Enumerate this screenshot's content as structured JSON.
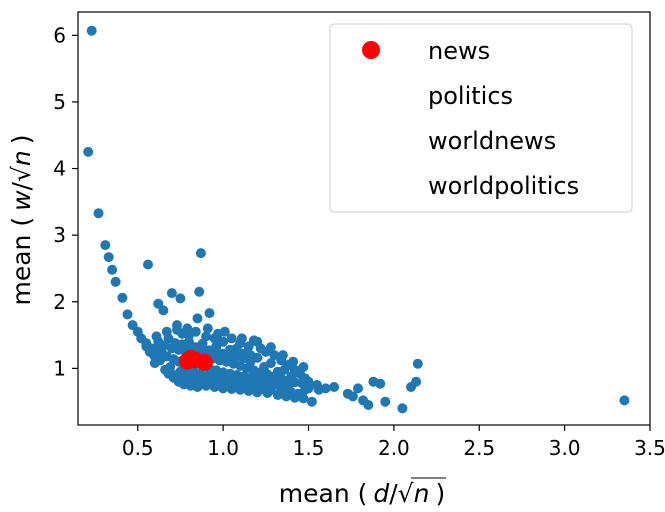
{
  "chart_data": {
    "type": "scatter",
    "xlabel_prefix": "mean (",
    "xlabel_var": "d",
    "xlabel_suffix": ")",
    "ylabel_prefix": "mean (",
    "ylabel_var": "w",
    "ylabel_suffix": ")",
    "xlim": [
      0.15,
      3.5
    ],
    "ylim": [
      0.15,
      6.35
    ],
    "xticks": [
      0.5,
      1.0,
      1.5,
      2.0,
      2.5,
      3.0,
      3.5
    ],
    "xtick_labels": [
      "0.5",
      "1.0",
      "1.5",
      "2.0",
      "2.5",
      "3.0",
      "3.5"
    ],
    "yticks": [
      1,
      2,
      3,
      4,
      5,
      6
    ],
    "ytick_labels": [
      "1",
      "2",
      "3",
      "4",
      "5",
      "6"
    ],
    "grid": false,
    "legend_position": "top-right",
    "background_series": {
      "color": "#1f77b4",
      "points": [
        [
          0.23,
          6.07
        ],
        [
          0.21,
          4.25
        ],
        [
          0.27,
          3.33
        ],
        [
          0.31,
          2.85
        ],
        [
          0.33,
          2.67
        ],
        [
          0.35,
          2.48
        ],
        [
          0.37,
          2.3
        ],
        [
          0.41,
          2.06
        ],
        [
          0.44,
          1.81
        ],
        [
          0.47,
          1.65
        ],
        [
          0.5,
          1.55
        ],
        [
          0.52,
          1.45
        ],
        [
          0.55,
          1.38
        ],
        [
          0.58,
          1.3
        ],
        [
          0.56,
          2.56
        ],
        [
          0.62,
          1.97
        ],
        [
          0.65,
          1.87
        ],
        [
          0.7,
          2.13
        ],
        [
          0.75,
          2.05
        ],
        [
          0.87,
          2.73
        ],
        [
          0.86,
          2.15
        ],
        [
          0.92,
          1.83
        ],
        [
          0.73,
          1.65
        ],
        [
          0.85,
          1.75
        ],
        [
          0.62,
          1.4
        ],
        [
          0.68,
          1.45
        ],
        [
          0.76,
          1.52
        ],
        [
          0.9,
          1.48
        ],
        [
          0.97,
          1.52
        ],
        [
          1.0,
          1.4
        ],
        [
          1.05,
          1.45
        ],
        [
          1.1,
          1.38
        ],
        [
          1.15,
          1.33
        ],
        [
          1.18,
          1.42
        ],
        [
          1.22,
          1.3
        ],
        [
          1.25,
          1.25
        ],
        [
          1.3,
          1.2
        ],
        [
          1.34,
          1.12
        ],
        [
          1.38,
          1.05
        ],
        [
          1.42,
          0.98
        ],
        [
          1.45,
          0.92
        ],
        [
          1.48,
          0.85
        ],
        [
          1.5,
          0.7
        ],
        [
          1.52,
          0.5
        ],
        [
          1.56,
          0.68
        ],
        [
          1.65,
          0.72
        ],
        [
          1.73,
          0.62
        ],
        [
          1.76,
          0.58
        ],
        [
          1.79,
          0.7
        ],
        [
          1.82,
          0.52
        ],
        [
          1.85,
          0.45
        ],
        [
          1.88,
          0.8
        ],
        [
          1.92,
          0.77
        ],
        [
          1.95,
          0.5
        ],
        [
          2.05,
          0.4
        ],
        [
          2.1,
          0.72
        ],
        [
          2.13,
          0.8
        ],
        [
          2.14,
          1.07
        ],
        [
          3.35,
          0.52
        ],
        [
          0.59,
          1.22
        ],
        [
          0.6,
          1.08
        ],
        [
          0.63,
          1.12
        ],
        [
          0.66,
          0.98
        ],
        [
          0.69,
          1.02
        ],
        [
          0.72,
          0.9
        ],
        [
          0.75,
          0.85
        ],
        [
          0.78,
          0.8
        ],
        [
          0.82,
          0.78
        ],
        [
          0.86,
          0.75
        ],
        [
          0.9,
          0.74
        ],
        [
          0.95,
          0.72
        ],
        [
          1.0,
          0.7
        ],
        [
          1.05,
          0.69
        ],
        [
          1.1,
          0.68
        ],
        [
          1.15,
          0.66
        ],
        [
          1.2,
          0.64
        ],
        [
          1.26,
          0.63
        ],
        [
          1.32,
          0.6
        ],
        [
          1.37,
          0.58
        ],
        [
          1.42,
          0.56
        ],
        [
          1.47,
          0.55
        ],
        [
          0.64,
          1.25
        ],
        [
          0.67,
          1.18
        ],
        [
          0.71,
          1.14
        ],
        [
          0.74,
          1.1
        ],
        [
          0.77,
          1.06
        ],
        [
          0.8,
          1.0
        ],
        [
          0.83,
          0.96
        ],
        [
          0.87,
          0.92
        ],
        [
          0.91,
          0.88
        ],
        [
          0.94,
          0.86
        ],
        [
          0.98,
          0.84
        ],
        [
          1.02,
          0.82
        ],
        [
          1.07,
          0.8
        ],
        [
          1.12,
          0.79
        ],
        [
          1.17,
          0.78
        ],
        [
          1.22,
          0.76
        ],
        [
          1.27,
          0.75
        ],
        [
          1.33,
          0.74
        ],
        [
          1.38,
          0.72
        ],
        [
          0.7,
          1.3
        ],
        [
          0.74,
          1.28
        ],
        [
          0.78,
          1.25
        ],
        [
          0.82,
          1.22
        ],
        [
          0.86,
          1.2
        ],
        [
          0.9,
          1.18
        ],
        [
          0.94,
          1.15
        ],
        [
          0.98,
          1.12
        ],
        [
          1.02,
          1.1
        ],
        [
          1.06,
          1.07
        ],
        [
          1.1,
          1.04
        ],
        [
          1.14,
          1.0
        ],
        [
          1.18,
          0.97
        ],
        [
          1.22,
          0.94
        ],
        [
          1.26,
          0.91
        ],
        [
          1.3,
          0.88
        ],
        [
          1.34,
          0.85
        ],
        [
          1.38,
          0.82
        ],
        [
          1.42,
          0.79
        ],
        [
          0.66,
          1.35
        ],
        [
          0.72,
          1.38
        ],
        [
          0.8,
          1.4
        ],
        [
          0.88,
          1.37
        ],
        [
          0.96,
          1.33
        ],
        [
          1.04,
          1.28
        ],
        [
          1.12,
          1.22
        ],
        [
          1.2,
          1.16
        ],
        [
          1.28,
          1.08
        ],
        [
          1.36,
          0.98
        ],
        [
          0.84,
          1.55
        ],
        [
          0.8,
          1.5
        ],
        [
          0.95,
          1.45
        ],
        [
          1.08,
          1.3
        ],
        [
          1.16,
          1.1
        ],
        [
          1.24,
          1.02
        ],
        [
          1.32,
          0.95
        ],
        [
          1.4,
          0.88
        ],
        [
          1.46,
          0.78
        ],
        [
          0.75,
          0.95
        ],
        [
          0.78,
          0.9
        ],
        [
          0.82,
          0.86
        ],
        [
          0.85,
          0.83
        ],
        [
          0.88,
          0.8
        ],
        [
          0.92,
          0.78
        ],
        [
          0.96,
          0.76
        ],
        [
          1.0,
          0.75
        ],
        [
          1.04,
          0.73
        ],
        [
          1.08,
          0.72
        ],
        [
          1.13,
          0.71
        ],
        [
          1.18,
          0.7
        ],
        [
          1.23,
          0.69
        ],
        [
          1.28,
          0.68
        ],
        [
          1.34,
          0.66
        ],
        [
          1.4,
          0.64
        ],
        [
          1.44,
          0.62
        ],
        [
          0.92,
          1.0
        ],
        [
          0.96,
          0.97
        ],
        [
          1.0,
          0.94
        ],
        [
          1.04,
          0.92
        ],
        [
          1.08,
          0.9
        ],
        [
          1.12,
          0.88
        ],
        [
          1.16,
          0.86
        ],
        [
          1.2,
          0.84
        ],
        [
          1.24,
          0.82
        ],
        [
          1.28,
          0.8
        ],
        [
          1.32,
          0.78
        ],
        [
          1.36,
          0.76
        ],
        [
          0.62,
          1.28
        ],
        [
          0.6,
          1.18
        ],
        [
          0.57,
          1.25
        ],
        [
          0.55,
          1.33
        ],
        [
          0.61,
          1.48
        ],
        [
          0.67,
          1.55
        ],
        [
          0.73,
          1.58
        ],
        [
          0.79,
          1.6
        ],
        [
          0.91,
          1.6
        ],
        [
          1.01,
          1.55
        ],
        [
          1.11,
          1.45
        ],
        [
          1.2,
          1.4
        ],
        [
          1.28,
          1.32
        ],
        [
          1.35,
          1.2
        ],
        [
          1.41,
          1.1
        ],
        [
          1.47,
          1.02
        ],
        [
          0.68,
          0.92
        ],
        [
          0.71,
          0.86
        ],
        [
          0.74,
          0.8
        ],
        [
          0.77,
          0.76
        ],
        [
          0.81,
          0.74
        ],
        [
          0.85,
          0.72
        ],
        [
          1.16,
          1.2
        ],
        [
          1.12,
          1.15
        ],
        [
          1.08,
          1.18
        ],
        [
          1.04,
          1.2
        ],
        [
          1.0,
          1.22
        ],
        [
          0.96,
          1.25
        ],
        [
          0.92,
          1.27
        ],
        [
          0.88,
          1.3
        ],
        [
          0.84,
          1.32
        ],
        [
          0.8,
          1.34
        ],
        [
          0.76,
          1.36
        ],
        [
          1.5,
          0.8
        ],
        [
          1.55,
          0.75
        ],
        [
          1.6,
          0.7
        ],
        [
          1.48,
          0.68
        ]
      ]
    },
    "legend": [
      {
        "name": "news",
        "color": "#ff0000",
        "marker": true
      },
      {
        "name": "politics",
        "color": "#ff0000",
        "marker": false
      },
      {
        "name": "worldnews",
        "color": "#ff0000",
        "marker": false
      },
      {
        "name": "worldpolitics",
        "color": "#ff0000",
        "marker": false
      }
    ],
    "highlight_points": [
      {
        "x": 0.81,
        "y": 1.15
      },
      {
        "x": 0.83,
        "y": 1.13
      },
      {
        "x": 0.89,
        "y": 1.09
      },
      {
        "x": 0.79,
        "y": 1.11
      }
    ],
    "highlight_color": "#ff0000"
  }
}
